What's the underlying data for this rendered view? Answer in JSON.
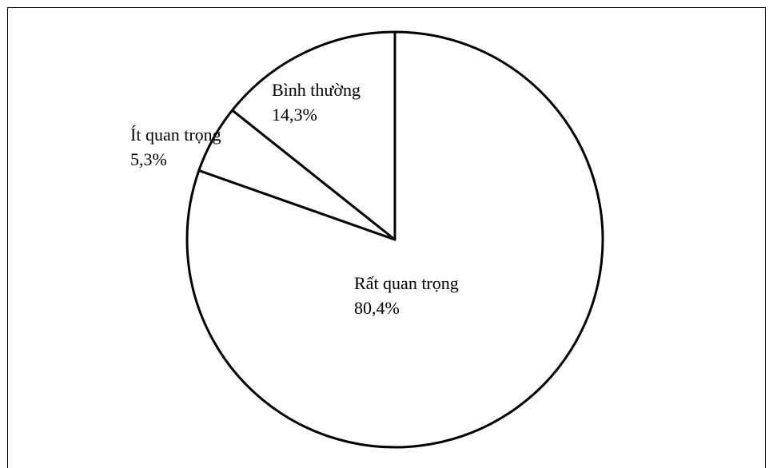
{
  "chart_data": {
    "type": "pie",
    "title": "",
    "start_angle_deg": 0,
    "direction": "clockwise",
    "slices": [
      {
        "name": "Rất quan trọng",
        "value": 80.4,
        "label": "80,4%",
        "color": "#ffffff"
      },
      {
        "name": "Ít quan trọng",
        "value": 5.3,
        "label": "5,3%",
        "color": "#ffffff"
      },
      {
        "name": "Bình thường",
        "value": 14.3,
        "label": "14,3%",
        "color": "#ffffff"
      }
    ],
    "stroke_color": "#000000",
    "legend": "none"
  }
}
